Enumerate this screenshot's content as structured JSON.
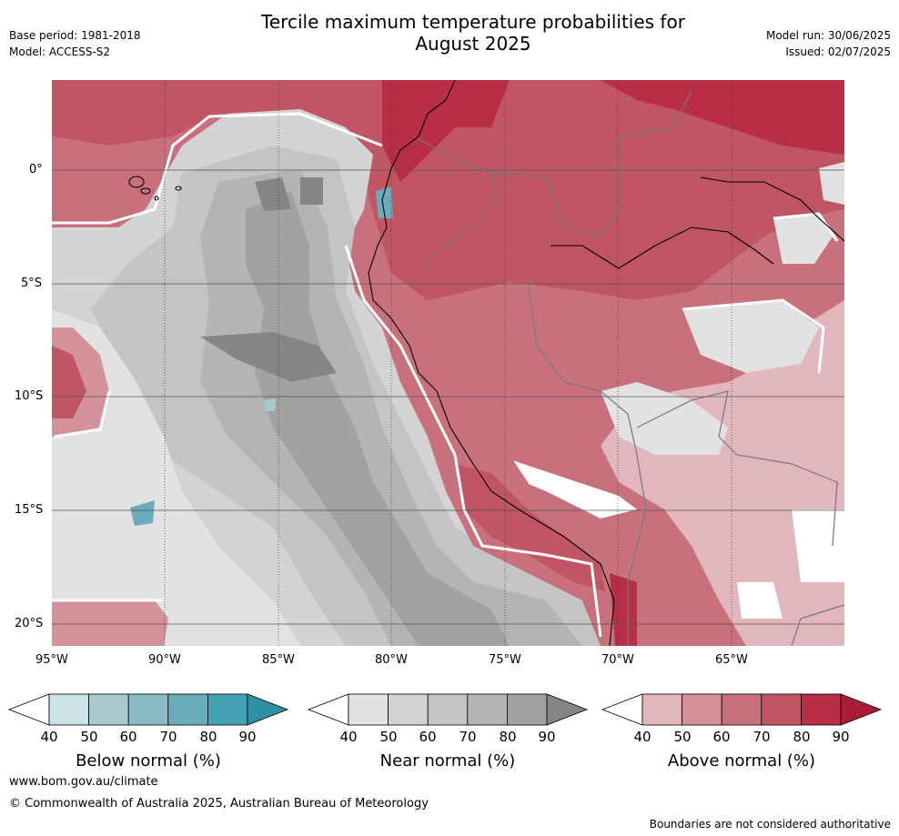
{
  "title_line1": "Tercile maximum temperature probabilities for",
  "title_line2": "August 2025",
  "meta_left": [
    "Base period: 1981-2018",
    "Model: ACCESS-S2"
  ],
  "meta_right": [
    "Model run: 30/06/2025",
    "Issued: 02/07/2025"
  ],
  "map": {
    "lon_labels": [
      "95°W",
      "90°W",
      "85°W",
      "80°W",
      "75°W",
      "70°W",
      "65°W"
    ],
    "lat_labels": [
      "0°",
      "5°S",
      "10°S",
      "15°S",
      "20°S"
    ]
  },
  "colorbars": [
    {
      "label": "Below normal (%)",
      "ticks": [
        "40",
        "50",
        "60",
        "70",
        "80",
        "90"
      ],
      "colors": [
        "#ffffff",
        "#cde2e6",
        "#a9c9ce",
        "#8ab8c3",
        "#6aacb9",
        "#45a2b3",
        "#2f8fa3"
      ]
    },
    {
      "label": "Near normal (%)",
      "ticks": [
        "40",
        "50",
        "60",
        "70",
        "80",
        "90"
      ],
      "colors": [
        "#ffffff",
        "#e2e2e2",
        "#d3d3d3",
        "#c4c4c4",
        "#b4b4b4",
        "#a2a2a2",
        "#858585"
      ]
    },
    {
      "label": "Above normal (%)",
      "ticks": [
        "40",
        "50",
        "60",
        "70",
        "80",
        "90"
      ],
      "colors": [
        "#ffffff",
        "#e2b6bd",
        "#d5919a",
        "#c8717c",
        "#c05563",
        "#b82f45",
        "#aa1b38"
      ]
    }
  ],
  "footer_url": "www.bom.gov.au/climate",
  "footer_copyright": "© Commonwealth of Australia 2025, Australian Bureau of Meteorology",
  "footer_disclaimer": "Boundaries are not considered authoritative"
}
